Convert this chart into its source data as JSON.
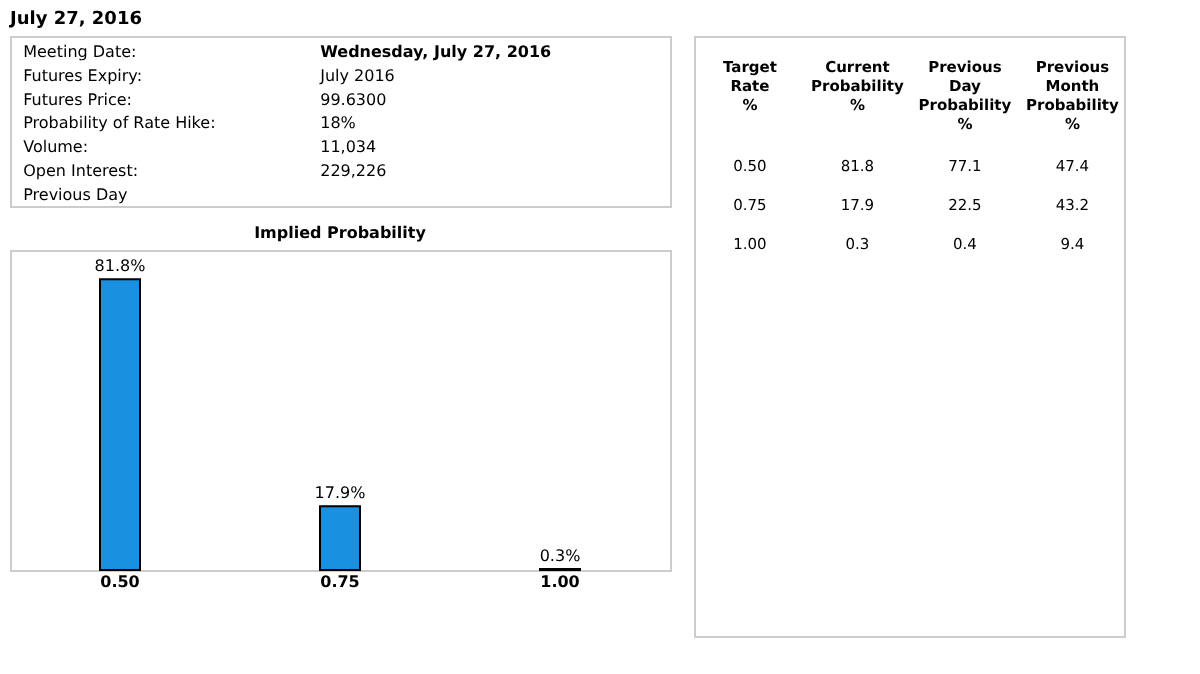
{
  "chart_data": [
    {
      "type": "other",
      "title": "July 27, 2016",
      "annotations": [
        "Meeting Date:",
        "Wednesday, July 27, 2016",
        "Futures Expiry:",
        "July 2016",
        "Futures Price:",
        "99.6300",
        "Probability of Rate Hike:",
        "18%",
        "Volume:",
        "11,034",
        "Open Interest:",
        "229,226",
        "Previous Day"
      ]
    },
    {
      "type": "bar",
      "title": "Implied Probability",
      "categories": [
        "0.50",
        "0.75",
        "1.00"
      ],
      "values": [
        81.8,
        17.9,
        0.3
      ],
      "value_labels": [
        "81.8%",
        "17.9%",
        "0.3%"
      ],
      "color": "#1a90e0"
    },
    {
      "type": "other",
      "annotations": [
        "Target Rate %",
        "Current Probability %",
        "Previous Day Probability %",
        "Previous Month Probability %",
        "0.50",
        "81.8",
        "77.1",
        "47.4",
        "0.75",
        "17.9",
        "22.5",
        "43.2",
        "1.00",
        "0.3",
        "0.4",
        "9.4"
      ]
    }
  ]
}
